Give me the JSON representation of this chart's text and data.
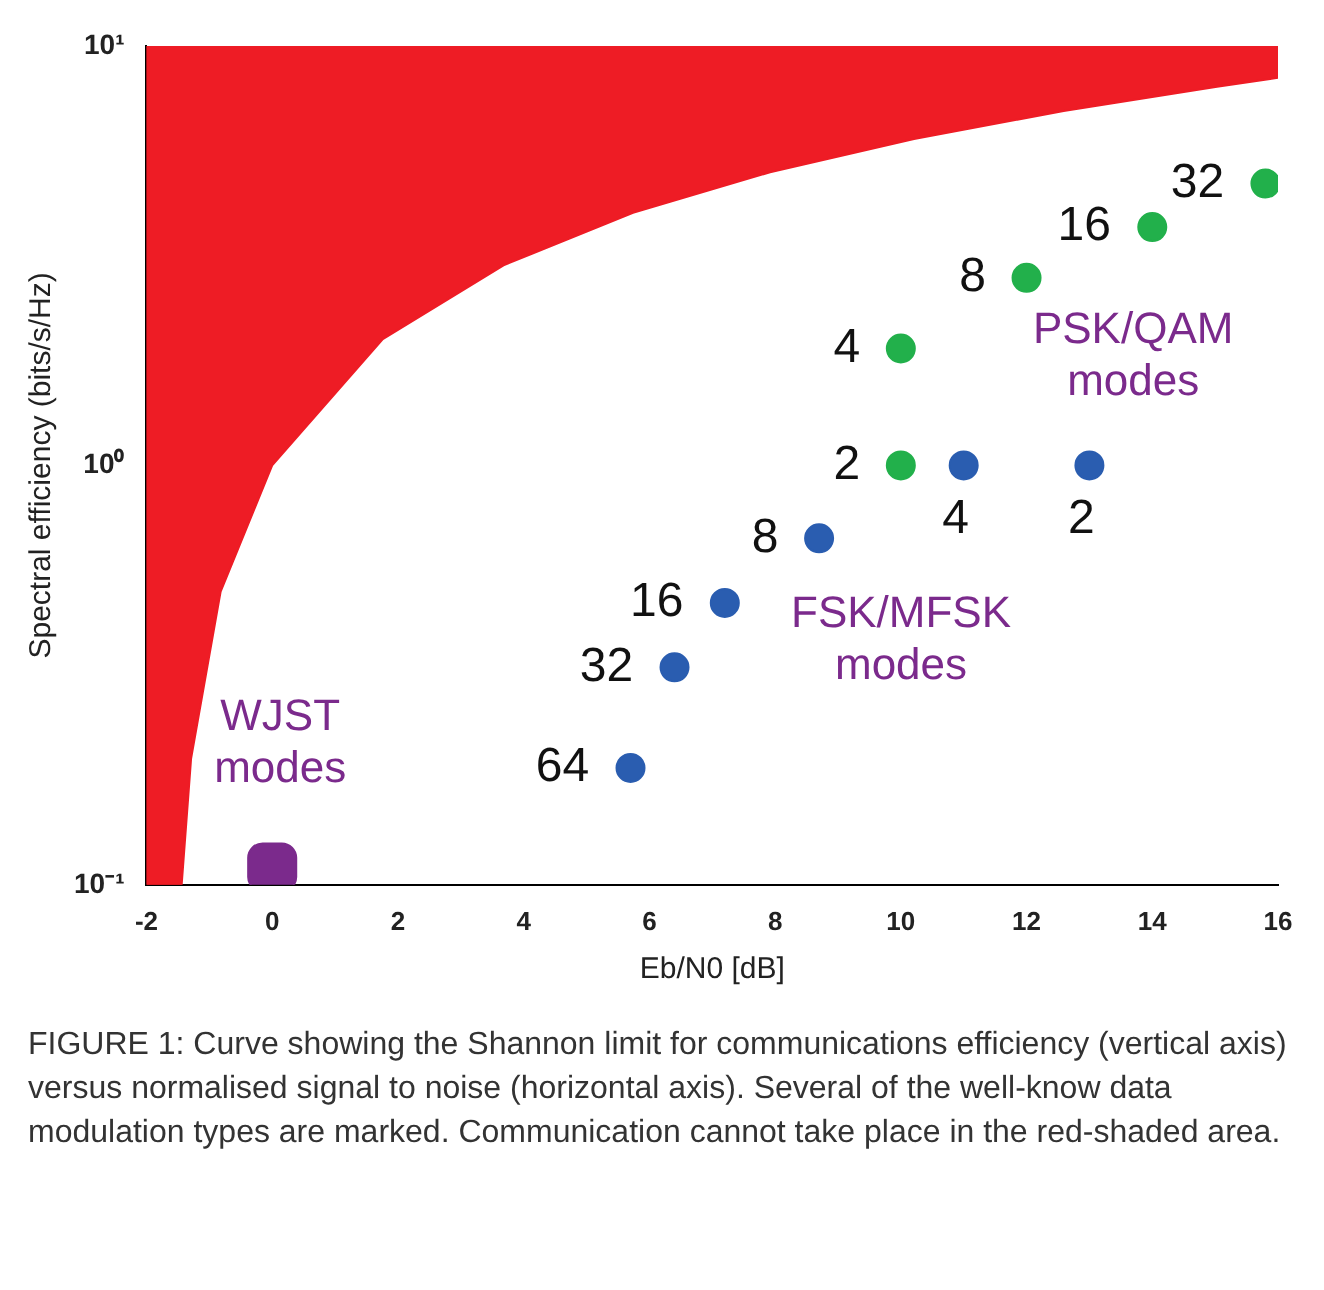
{
  "chart_data": {
    "type": "scatter",
    "xlabel": "Eb/N0 [dB]",
    "ylabel": "Spectral efficiency (bits/s/Hz)",
    "log": "y",
    "grid": false,
    "legend": false,
    "marker": "circle",
    "xlim": [
      -2,
      16
    ],
    "xticks": [
      -2,
      0,
      2,
      4,
      6,
      8,
      10,
      12,
      14,
      16
    ],
    "ylim": [
      0.1,
      10
    ],
    "yticks": [
      {
        "value": 0.1,
        "label": "10⁻¹"
      },
      {
        "value": 1,
        "label": "10⁰"
      },
      {
        "value": 10,
        "label": "10¹"
      }
    ],
    "series": [
      {
        "type": "area",
        "marker": "none",
        "color": "#ee1c25",
        "x": [
          -2,
          -2,
          -1.6,
          -1.44,
          -1.29,
          -0.82,
          0,
          1.76,
          3.68,
          5.74,
          7.92,
          10.21,
          12.59,
          15.03,
          16,
          16
        ],
        "values": [
          10,
          0.1,
          0.1,
          0.1,
          0.2,
          0.5,
          1,
          2,
          3,
          4,
          5,
          6,
          7,
          8,
          8.4,
          10
        ]
      },
      {
        "name": "PSK/QAM modes",
        "color": "#22b04b",
        "x": [
          10,
          10,
          12,
          14,
          15.8
        ],
        "values": [
          1,
          1.9,
          2.8,
          3.7,
          4.7
        ]
      },
      {
        "name": "FSK/MFSK modes",
        "color": "#2a5db0",
        "x": [
          13,
          11,
          8.7,
          7.2,
          6.4,
          5.7
        ],
        "values": [
          1,
          1,
          0.67,
          0.47,
          0.33,
          0.19
        ]
      },
      {
        "name": "WJST modes",
        "color": "#7b2a8c",
        "marker": "square",
        "x": [
          0
        ],
        "values": [
          0.11
        ]
      }
    ],
    "annotations": [
      {
        "text": "2",
        "x": 10,
        "y": 1
      },
      {
        "text": "4",
        "x": 10,
        "y": 1.9
      },
      {
        "text": "8",
        "x": 12,
        "y": 2.8
      },
      {
        "text": "16",
        "x": 14,
        "y": 3.7
      },
      {
        "text": "32",
        "x": 15.8,
        "y": 4.7
      },
      {
        "text": "4",
        "x": 11,
        "y": 1
      },
      {
        "text": "2",
        "x": 13,
        "y": 1
      },
      {
        "text": "8",
        "x": 8.7,
        "y": 0.67
      },
      {
        "text": "16",
        "x": 7.2,
        "y": 0.47
      },
      {
        "text": "32",
        "x": 6.4,
        "y": 0.33
      },
      {
        "text": "64",
        "x": 5.7,
        "y": 0.19
      },
      "FIGURE 1: Curve showing the Shannon limit for communications efficiency (vertical axis) versus normalised signal to noise (horizontal axis). Several of the well-know data modulation types are marked. Communication cannot take place in the red-shaded area."
    ]
  }
}
